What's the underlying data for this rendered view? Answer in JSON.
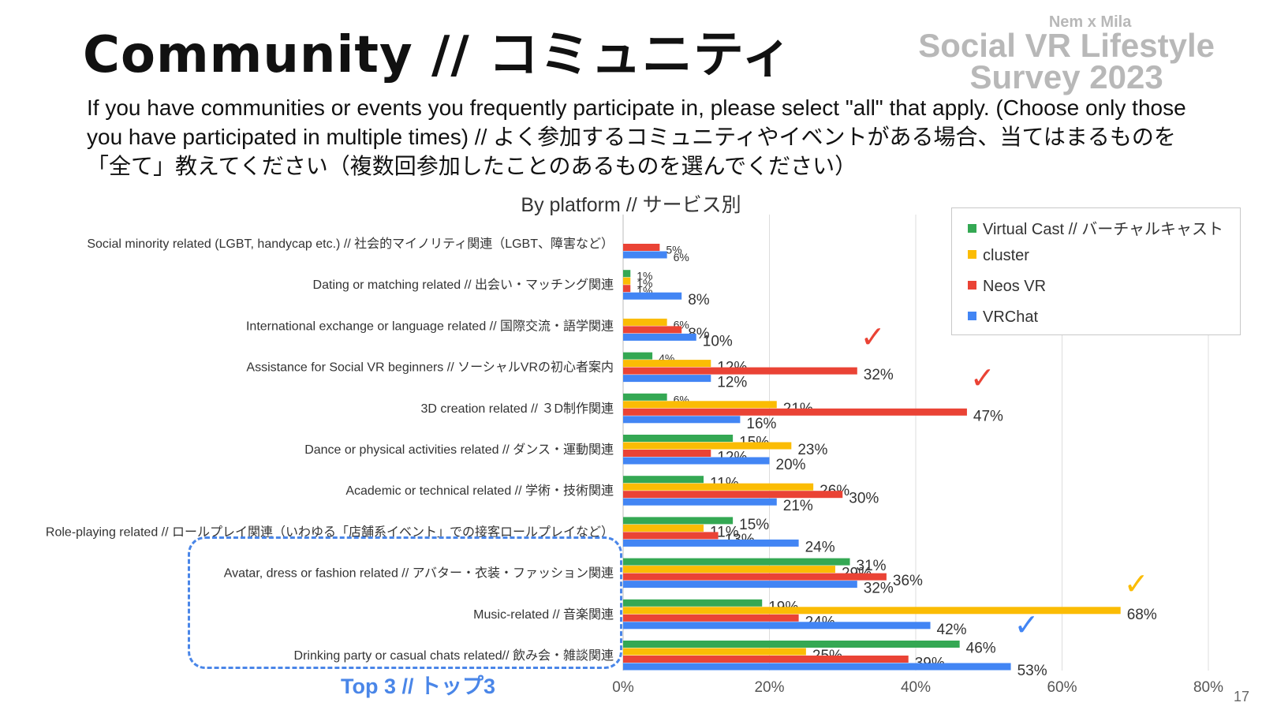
{
  "title": "Community // コミュニティ",
  "brand": {
    "line1": "Nem x Mila",
    "line2": "Social VR Lifestyle",
    "line3": "Survey 2023"
  },
  "question": "If you have communities or events you frequently participate in, please select \"all\" that apply. (Choose only those you have participated in multiple times) // よく参加するコミュニティやイベントがある場合、当てはまるものを「全て」教えてください（複数回参加したことのあるものを選んでください）",
  "top3_label": "Top 3 // トップ3",
  "page_number": "17",
  "colors": {
    "virtual_cast": "#34a853",
    "cluster": "#fbbc04",
    "neos_vr": "#ea4335",
    "vrchat": "#4285f4",
    "top3_box": "#4a86e8"
  },
  "checkmarks": [
    {
      "category_index": 3,
      "color": "#ea4335"
    },
    {
      "category_index": 4,
      "color": "#ea4335"
    },
    {
      "category_index": 9,
      "color": "#fbbc04"
    },
    {
      "category_index": 10,
      "color": "#4285f4"
    }
  ],
  "chart_data": {
    "type": "bar",
    "orientation": "horizontal",
    "title": "By platform // サービス別",
    "xlim": [
      0,
      80
    ],
    "xticks": [
      "0%",
      "20%",
      "40%",
      "60%",
      "80%"
    ],
    "grid": true,
    "legend_position": "top-right",
    "categories": [
      "Social minority related (LGBT, handycap etc.) // 社会的マイノリティ関連（LGBT、障害など）",
      "Dating or matching related // 出会い・マッチング関連",
      "International exchange or language related // 国際交流・語学関連",
      "Assistance for Social VR beginners // ソーシャルVRの初心者案内",
      "3D creation related // ３D制作関連",
      "Dance or physical activities related // ダンス・運動関連",
      "Academic or technical related // 学術・技術関連",
      "Role-playing related // ロールプレイ関連（いわゆる「店舗系イベント」での接客ロールプレイなど）",
      "Avatar, dress or fashion related // アバター・衣装・ファッション関連",
      "Music-related // 音楽関連",
      "Drinking party or casual chats related// 飲み会・雑談関連"
    ],
    "series": [
      {
        "name": "Virtual Cast // バーチャルキャスト",
        "color": "#34a853",
        "values": [
          null,
          1,
          null,
          4,
          6,
          15,
          11,
          15,
          31,
          19,
          46
        ]
      },
      {
        "name": "cluster",
        "color": "#fbbc04",
        "values": [
          null,
          1,
          6,
          12,
          21,
          23,
          26,
          11,
          29,
          68,
          25
        ]
      },
      {
        "name": "Neos VR",
        "color": "#ea4335",
        "values": [
          5,
          1,
          8,
          32,
          47,
          12,
          30,
          13,
          36,
          24,
          39
        ]
      },
      {
        "name": "VRChat",
        "color": "#4285f4",
        "values": [
          6,
          8,
          10,
          12,
          16,
          20,
          21,
          24,
          32,
          42,
          53
        ]
      }
    ]
  }
}
